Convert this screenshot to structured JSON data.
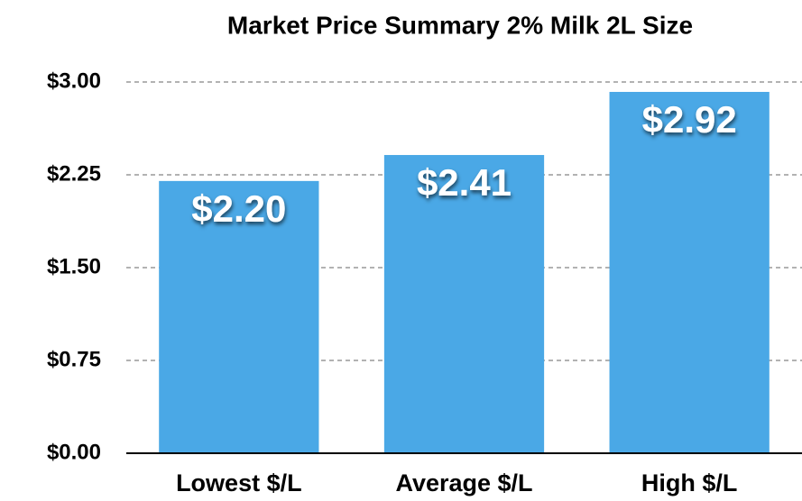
{
  "chart_data": {
    "type": "bar",
    "title": "Market Price Summary 2% Milk 2L Size",
    "categories": [
      "Lowest $/L",
      "Average $/L",
      "High $/L"
    ],
    "values": [
      2.2,
      2.41,
      2.92
    ],
    "value_labels": [
      "$2.20",
      "$2.41",
      "$2.92"
    ],
    "color": "#4aa8e6",
    "ylim": [
      0,
      3
    ],
    "yticks": [
      {
        "value": 0,
        "label": "$0.00"
      },
      {
        "value": 0.75,
        "label": "$0.75"
      },
      {
        "value": 1.5,
        "label": "$1.50"
      },
      {
        "value": 2.25,
        "label": "$2.25"
      },
      {
        "value": 3,
        "label": "$3.00"
      }
    ],
    "grid": true
  }
}
